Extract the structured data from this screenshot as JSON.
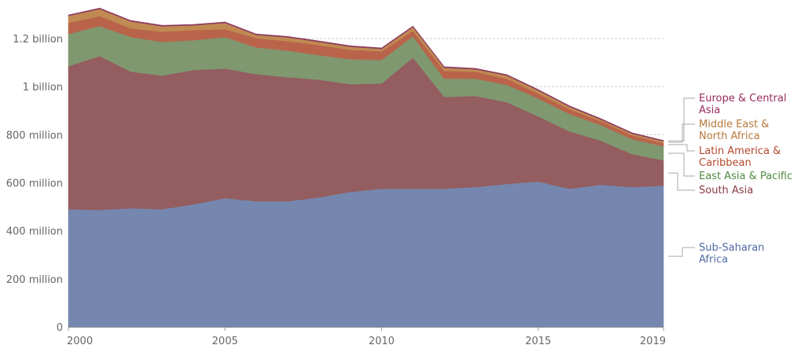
{
  "chart_data": {
    "type": "area",
    "stacked": true,
    "title": "",
    "xlabel": "",
    "ylabel": "",
    "x": [
      2000,
      2001,
      2002,
      2003,
      2004,
      2005,
      2006,
      2007,
      2008,
      2009,
      2010,
      2011,
      2012,
      2013,
      2014,
      2015,
      2016,
      2017,
      2018,
      2019
    ],
    "ylim": [
      0,
      1300000000
    ],
    "y_ticks": [
      {
        "value": 0,
        "label": "0"
      },
      {
        "value": 200000000,
        "label": "200 million"
      },
      {
        "value": 400000000,
        "label": "400 million"
      },
      {
        "value": 600000000,
        "label": "600 million"
      },
      {
        "value": 800000000,
        "label": "800 million"
      },
      {
        "value": 1000000000,
        "label": "1 billion"
      },
      {
        "value": 1200000000,
        "label": "1.2 billion"
      }
    ],
    "x_ticks": [
      {
        "value": 2000,
        "label": "2000"
      },
      {
        "value": 2005,
        "label": "2005"
      },
      {
        "value": 2010,
        "label": "2010"
      },
      {
        "value": 2015,
        "label": "2015"
      },
      {
        "value": 2019,
        "label": "2019"
      }
    ],
    "grid": true,
    "legend_placement": "right (end-of-series labels)",
    "series": [
      {
        "name": "Sub-Saharan Africa",
        "label_lines": [
          "Sub-Saharan",
          "Africa"
        ],
        "color": "#7587ae",
        "text_color": "#4f6aa5",
        "values_millions": [
          490,
          487,
          494,
          490,
          510,
          536,
          523,
          523,
          539,
          562,
          575,
          575,
          575,
          582,
          595,
          605,
          575,
          592,
          582,
          588
        ]
      },
      {
        "name": "South Asia",
        "label_lines": [
          "South Asia"
        ],
        "color": "#945d5f",
        "text_color": "#883a42",
        "values_millions": [
          595,
          640,
          568,
          556,
          559,
          539,
          529,
          516,
          490,
          448,
          438,
          546,
          382,
          379,
          340,
          271,
          239,
          183,
          137,
          105
        ]
      },
      {
        "name": "East Asia & Pacific",
        "label_lines": [
          "East Asia & Pacific"
        ],
        "color": "#7f9870",
        "text_color": "#4f8a3f",
        "values_millions": [
          134,
          125,
          144,
          140,
          124,
          131,
          111,
          111,
          102,
          104,
          98,
          88,
          76,
          72,
          72,
          75,
          72,
          65,
          62,
          59
        ]
      },
      {
        "name": "Latin America & Caribbean",
        "label_lines": [
          "Latin America &",
          "Caribbean"
        ],
        "color": "#b9644a",
        "text_color": "#b6482b",
        "values_millions": [
          46,
          42,
          36,
          42,
          42,
          33,
          39,
          39,
          42,
          39,
          36,
          23,
          33,
          29,
          26,
          20,
          20,
          16,
          16,
          13
        ]
      },
      {
        "name": "Middle East & North Africa",
        "label_lines": [
          "Middle East &",
          "North Africa"
        ],
        "color": "#c08a52",
        "text_color": "#b8773a",
        "values_millions": [
          29,
          29,
          29,
          23,
          20,
          26,
          13,
          16,
          13,
          13,
          10,
          16,
          13,
          10,
          13,
          13,
          10,
          7,
          7,
          7
        ]
      },
      {
        "name": "Europe & Central Asia",
        "label_lines": [
          "Europe & Central",
          "Asia"
        ],
        "color": "#8c3a5e",
        "text_color": "#992b5c",
        "values_millions": [
          4,
          4,
          4,
          4,
          4,
          4,
          4,
          4,
          4,
          4,
          4,
          4,
          4,
          4,
          4,
          4,
          4,
          4,
          4,
          4
        ]
      }
    ]
  }
}
